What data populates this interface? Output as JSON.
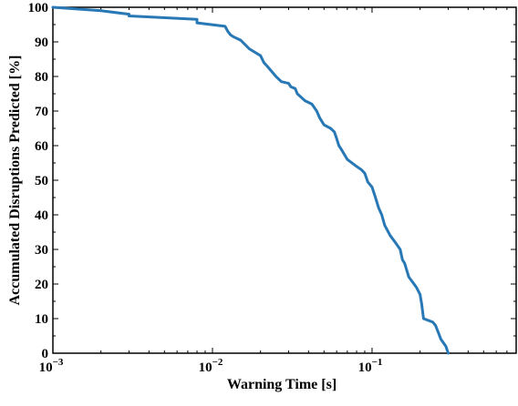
{
  "chart_data": {
    "type": "line",
    "title": "",
    "xlabel": "Warning Time [s]",
    "ylabel": "Accumulated Disruptions Predicted [%]",
    "x_scale": "log",
    "xlim": [
      0.001,
      0.8
    ],
    "ylim": [
      0,
      100
    ],
    "grid": false,
    "legend": "none",
    "line_color": "#2878b5",
    "x_major_ticks": [
      {
        "value": 0.001,
        "base": "10",
        "exp": "−3"
      },
      {
        "value": 0.01,
        "base": "10",
        "exp": "−2"
      },
      {
        "value": 0.1,
        "base": "10",
        "exp": "−1"
      }
    ],
    "y_ticks": [
      0,
      10,
      20,
      30,
      40,
      50,
      60,
      70,
      80,
      90,
      100
    ],
    "series": [
      {
        "x": [
          0.001,
          0.002,
          0.003,
          0.003,
          0.008,
          0.008,
          0.012,
          0.0125,
          0.013,
          0.0135,
          0.015,
          0.017,
          0.02,
          0.021,
          0.022,
          0.025,
          0.027,
          0.03,
          0.031,
          0.033,
          0.034,
          0.038,
          0.042,
          0.045,
          0.047,
          0.05,
          0.055,
          0.058,
          0.06,
          0.062,
          0.064,
          0.07,
          0.08,
          0.086,
          0.09,
          0.094,
          0.1,
          0.105,
          0.11,
          0.115,
          0.12,
          0.13,
          0.14,
          0.15,
          0.155,
          0.16,
          0.17,
          0.18,
          0.19,
          0.2,
          0.205,
          0.21,
          0.24,
          0.25,
          0.26,
          0.27,
          0.29,
          0.3
        ],
        "y": [
          100,
          99,
          98,
          97.5,
          96.5,
          95.5,
          94.5,
          93,
          92,
          91.5,
          90.5,
          88,
          86,
          84,
          83,
          80,
          78.5,
          78,
          77,
          76.5,
          75,
          73,
          72,
          70,
          68,
          66,
          65,
          64,
          62,
          60,
          59,
          56,
          54,
          53,
          52,
          49.5,
          48,
          45,
          42,
          40,
          37,
          34,
          32,
          30,
          27,
          26,
          22,
          20.5,
          19,
          17,
          14,
          10,
          9,
          8,
          6,
          4,
          2,
          0
        ]
      }
    ]
  }
}
